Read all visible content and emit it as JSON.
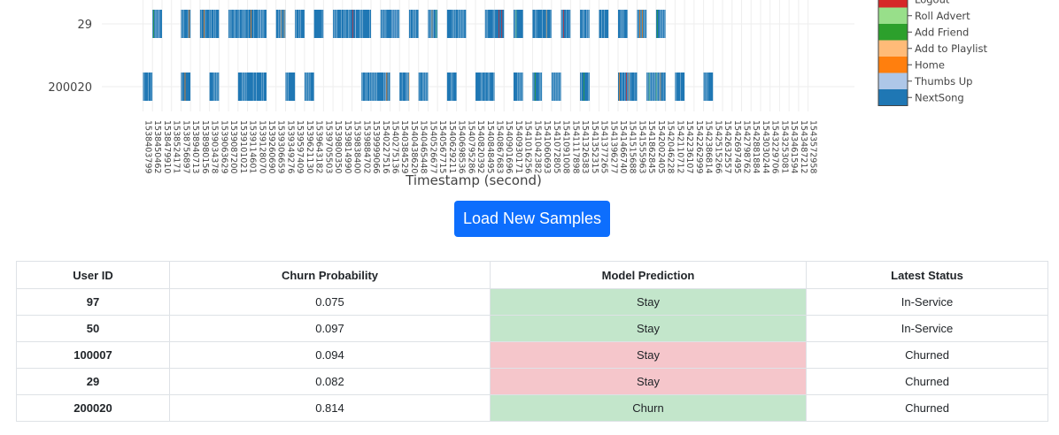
{
  "chart_data": {
    "type": "bar",
    "xlabel": "Timestamp (second)",
    "y_categories": [
      "29",
      "200020"
    ],
    "x_ticks": [
      "1538403799",
      "1538450462",
      "1538479910",
      "1538524171",
      "1538756897",
      "1538940713",
      "1538980156",
      "1539034378",
      "1539063629",
      "1539087200",
      "1539101021",
      "1539114601",
      "1539128070",
      "1539260690",
      "1539306659",
      "1539349276",
      "1539597409",
      "1539621130",
      "1539643182",
      "1539705503",
      "1539800350",
      "1539814990",
      "1539838400",
      "1539884702",
      "1539999066",
      "1540227516",
      "1540275136",
      "1540384529",
      "1540438620",
      "1540465448",
      "1540526677",
      "1540567715",
      "1540629211",
      "1540698536",
      "1540795286",
      "1540820392",
      "1540848495",
      "1540867683",
      "1540901696",
      "1540930171",
      "1541016256",
      "1541042382",
      "1541060693",
      "1541072805",
      "1541091008",
      "1541117898",
      "1541326383",
      "1541352315",
      "1541377265",
      "1541396277",
      "1541466740",
      "1541515688",
      "1541555963",
      "1541862845",
      "1542002405",
      "1542046228",
      "1542110712",
      "1542236107",
      "1542262999",
      "1542386814",
      "1542515266",
      "1542632557",
      "1542697495",
      "1542798762",
      "1542881884",
      "1543030244",
      "1543229706",
      "1543253081",
      "1543461594",
      "1543487212",
      "1543572958"
    ],
    "legend": [
      "Logout",
      "Roll Advert",
      "Add Friend",
      "Add to Playlist",
      "Home",
      "Thumbs Up",
      "NextSong"
    ],
    "legend_colors": [
      "#d62728",
      "#98df8a",
      "#2ca02c",
      "#ffbb78",
      "#ff7f0e",
      "#aec7e8",
      "#1f77b4"
    ],
    "series": [
      {
        "user": "29",
        "blocks": [
          [
            "1538450462",
            "1538479910"
          ],
          [
            "1538756897",
            "1538940713"
          ],
          [
            "1538980156",
            "1539063629"
          ],
          [
            "1539087200",
            "1539260690"
          ],
          [
            "1539306659",
            "1539349276"
          ],
          [
            "1539597409",
            "1539621130"
          ],
          [
            "1539643182",
            "1539705503"
          ],
          [
            "1539800350",
            "1539999066"
          ],
          [
            "1540227516",
            "1540384529"
          ],
          [
            "1540438620",
            "1540465448"
          ],
          [
            "1540526677",
            "1540567715"
          ],
          [
            "1540629211",
            "1540795286"
          ],
          [
            "1540848495",
            "1540901696"
          ],
          [
            "1540930171",
            "1541016256"
          ],
          [
            "1541042382",
            "1541072805"
          ],
          [
            "1541091008",
            "1541117898"
          ],
          [
            "1541326383",
            "1541352315"
          ],
          [
            "1541377265",
            "1541396277"
          ],
          [
            "1541466740",
            "1541515688"
          ],
          [
            "1541555963",
            "1541862845"
          ],
          [
            "1542002405",
            "1542046228"
          ]
        ]
      },
      {
        "user": "200020",
        "blocks": [
          [
            "1538403799",
            "1538450462"
          ],
          [
            "1538756897",
            "1538940713"
          ],
          [
            "1539034378",
            "1539063629"
          ],
          [
            "1539101021",
            "1539260690"
          ],
          [
            "1539349276",
            "1539597409"
          ],
          [
            "1539621130",
            "1539643182"
          ],
          [
            "1539884702",
            "1540275136"
          ],
          [
            "1540384529",
            "1540438620"
          ],
          [
            "1540465448",
            "1540526677"
          ],
          [
            "1540629211",
            "1540698536"
          ],
          [
            "1540820392",
            "1540867683"
          ],
          [
            "1540930171",
            "1541016256"
          ],
          [
            "1541042382",
            "1541060693"
          ],
          [
            "1541072805",
            "1541091008"
          ],
          [
            "1541326383",
            "1541352315"
          ],
          [
            "1541466740",
            "1541555963"
          ],
          [
            "1541862845",
            "1542046228"
          ],
          [
            "1542110712",
            "1542236107"
          ],
          [
            "1542386814",
            "1542515266"
          ]
        ]
      }
    ]
  },
  "button": {
    "label": "Load New Samples"
  },
  "table": {
    "headers": [
      "User ID",
      "Churn Probability",
      "Model Prediction",
      "Latest Status"
    ],
    "rows": [
      {
        "user_id": "97",
        "prob": "0.075",
        "prediction": "Stay",
        "pred_color": "green",
        "status": "In-Service"
      },
      {
        "user_id": "50",
        "prob": "0.097",
        "prediction": "Stay",
        "pred_color": "green",
        "status": "In-Service"
      },
      {
        "user_id": "100007",
        "prob": "0.094",
        "prediction": "Stay",
        "pred_color": "red",
        "status": "Churned"
      },
      {
        "user_id": "29",
        "prob": "0.082",
        "prediction": "Stay",
        "pred_color": "red",
        "status": "Churned"
      },
      {
        "user_id": "200020",
        "prob": "0.814",
        "prediction": "Churn",
        "pred_color": "green",
        "status": "Churned"
      }
    ]
  }
}
